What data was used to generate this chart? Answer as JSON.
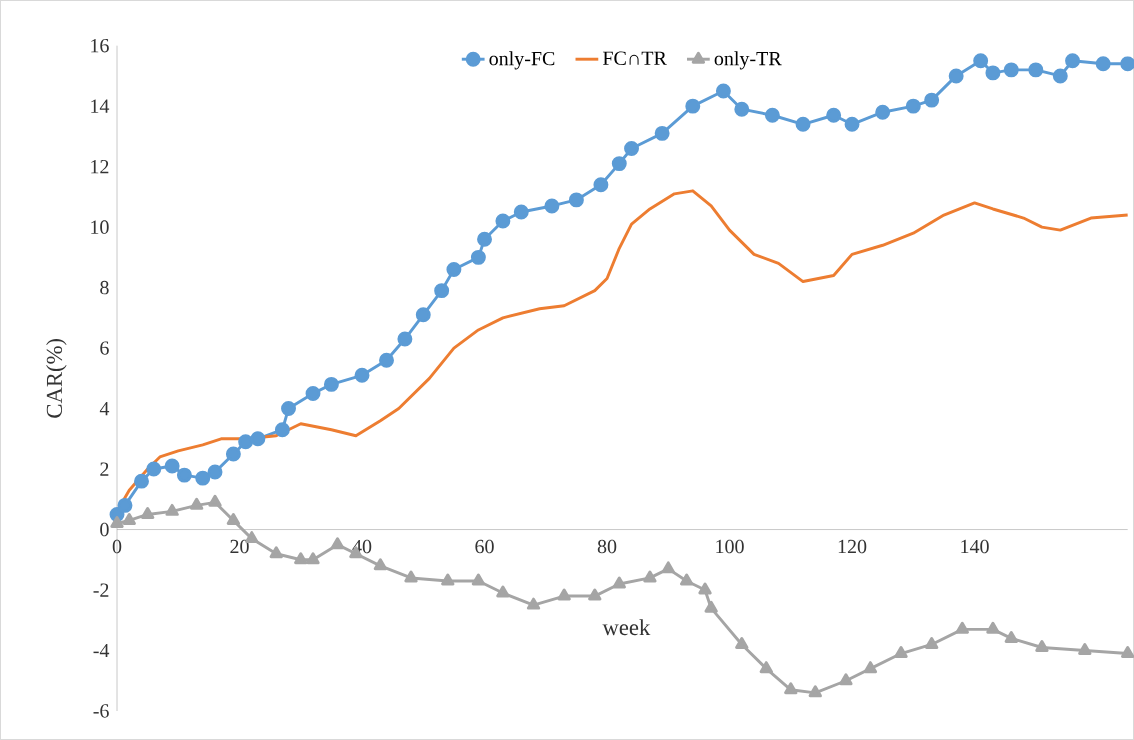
{
  "chart_data": {
    "type": "line",
    "xlabel": "week",
    "ylabel": "CAR(%)",
    "xlim": [
      0,
      165
    ],
    "xticks": [
      0,
      20,
      40,
      60,
      80,
      100,
      120,
      140
    ],
    "ylim": [
      -6,
      16
    ],
    "yticks": [
      -6,
      -4,
      -2,
      0,
      2,
      4,
      6,
      8,
      10,
      12,
      14,
      16
    ],
    "legend": "top",
    "line_style": "solid",
    "series": [
      {
        "name": "only-FC",
        "color": "#5b9bd5",
        "marker": "circle",
        "x": [
          0,
          1.3,
          4,
          6,
          9,
          11,
          14,
          16,
          19,
          21,
          23,
          27,
          28,
          32,
          35,
          40,
          44,
          47,
          50,
          53,
          55,
          59,
          60,
          63,
          66,
          71,
          75,
          79,
          82,
          84,
          89,
          94,
          99,
          102,
          107,
          112,
          117,
          120,
          125,
          130,
          133,
          137,
          141,
          143,
          146,
          150,
          154,
          156,
          161,
          165
        ],
        "values": [
          0.5,
          0.8,
          1.6,
          2.0,
          2.1,
          1.8,
          1.7,
          1.9,
          2.5,
          2.9,
          3.0,
          3.3,
          4.0,
          4.5,
          4.8,
          5.1,
          5.6,
          6.3,
          7.1,
          7.9,
          8.6,
          9.0,
          9.6,
          10.2,
          10.5,
          10.7,
          10.9,
          11.4,
          12.1,
          12.6,
          13.1,
          14.0,
          14.5,
          13.9,
          13.7,
          13.4,
          13.7,
          13.4,
          13.8,
          14.0,
          14.2,
          15.0,
          15.5,
          15.1,
          15.2,
          15.2,
          15.0,
          15.5,
          15.4,
          15.4
        ]
      },
      {
        "name": "FC∩TR",
        "color": "#ed7d31",
        "marker": "none",
        "x": [
          0,
          2,
          5,
          7,
          10,
          14,
          17,
          21,
          26,
          30,
          35,
          39,
          43,
          46,
          51,
          55,
          59,
          63,
          69,
          73,
          78,
          80,
          82,
          84,
          87,
          91,
          94,
          97,
          100,
          104,
          108,
          112,
          117,
          120,
          125,
          130,
          135,
          140,
          143,
          148,
          151,
          154,
          159,
          165
        ],
        "values": [
          0.6,
          1.3,
          2.0,
          2.4,
          2.6,
          2.8,
          3.0,
          3.0,
          3.1,
          3.5,
          3.3,
          3.1,
          3.6,
          4.0,
          5.0,
          6.0,
          6.6,
          7.0,
          7.3,
          7.4,
          7.9,
          8.3,
          9.3,
          10.1,
          10.6,
          11.1,
          11.2,
          10.7,
          9.9,
          9.1,
          8.8,
          8.2,
          8.4,
          9.1,
          9.4,
          9.8,
          10.4,
          10.8,
          10.6,
          10.3,
          10.0,
          9.9,
          10.3,
          10.4
        ]
      },
      {
        "name": "only-TR",
        "color": "#a5a5a5",
        "marker": "triangle",
        "x": [
          0,
          2,
          5,
          9,
          13,
          16,
          19,
          22,
          26,
          30,
          32,
          36,
          39,
          43,
          48,
          54,
          59,
          63,
          68,
          73,
          78,
          82,
          87,
          90,
          93,
          96,
          97,
          102,
          106,
          110,
          114,
          119,
          123,
          128,
          133,
          138,
          143,
          146,
          151,
          158,
          165
        ],
        "values": [
          0.2,
          0.3,
          0.5,
          0.6,
          0.8,
          0.9,
          0.3,
          -0.3,
          -0.8,
          -1.0,
          -1.0,
          -0.5,
          -0.8,
          -1.2,
          -1.6,
          -1.7,
          -1.7,
          -2.1,
          -2.5,
          -2.2,
          -2.2,
          -1.8,
          -1.6,
          -1.3,
          -1.7,
          -2.0,
          -2.6,
          -3.8,
          -4.6,
          -5.3,
          -5.4,
          -5.0,
          -4.6,
          -4.1,
          -3.8,
          -3.3,
          -3.3,
          -3.6,
          -3.9,
          -4.0,
          -4.1
        ]
      }
    ]
  }
}
